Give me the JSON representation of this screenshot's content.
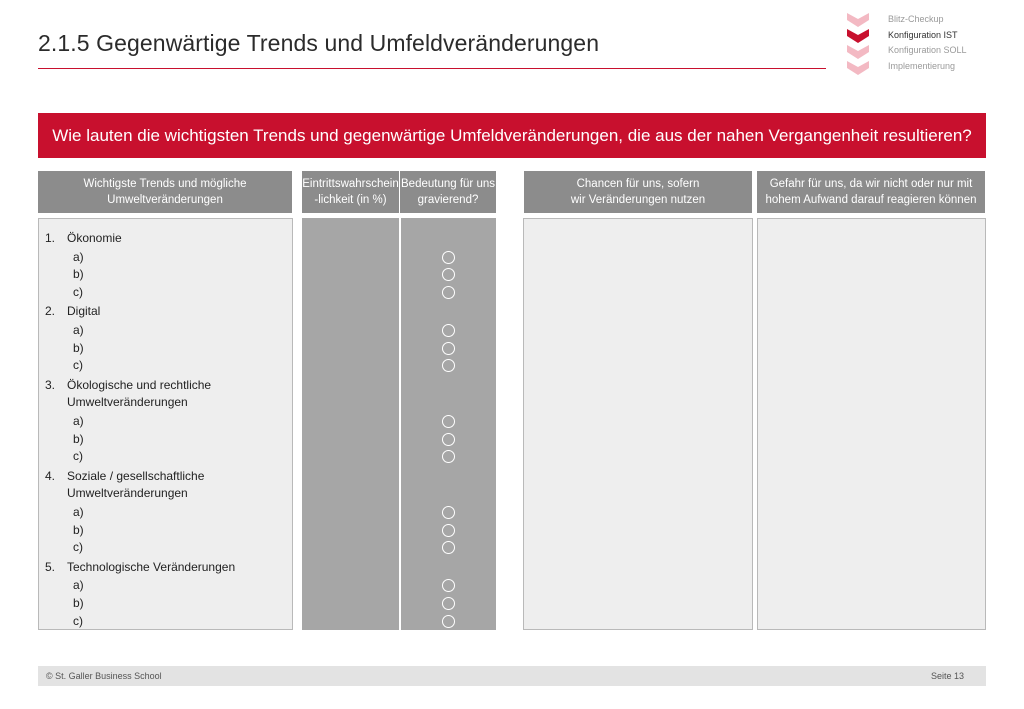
{
  "title": "2.1.5 Gegenwärtige Trends und Umfeldveränderungen",
  "steps": [
    {
      "label": "Blitz-Checkup",
      "active": false
    },
    {
      "label": "Konfiguration IST",
      "active": true
    },
    {
      "label": "Konfiguration SOLL",
      "active": false
    },
    {
      "label": "Implementierung",
      "active": false
    }
  ],
  "question": "Wie lauten die wichtigsten Trends und gegenwärtige Umfeldveränderungen, die aus der nahen Vergangenheit resultieren?",
  "columns": {
    "trends": [
      "Wichtigste Trends und mögliche",
      "Umweltveränderungen"
    ],
    "probability": [
      "Eintrittswahrschein",
      "-lichkeit (in %)"
    ],
    "significance": [
      "Bedeutung für uns",
      "gravierend?"
    ],
    "chances": [
      "Chancen für uns, sofern",
      "wir Veränderungen nutzen"
    ],
    "dangers": [
      "Gefahr für uns, da wir nicht oder nur mit",
      "hohem Aufwand darauf reagieren können"
    ]
  },
  "categories": [
    {
      "num": "1.",
      "lines": [
        "Ökonomie"
      ],
      "subs": [
        "a)",
        "b)",
        "c)"
      ]
    },
    {
      "num": "2.",
      "lines": [
        "Digital"
      ],
      "subs": [
        "a)",
        "b)",
        "c)"
      ]
    },
    {
      "num": "3.",
      "lines": [
        "Ökologische und rechtliche",
        "Umweltveränderungen"
      ],
      "subs": [
        "a)",
        "b)",
        "c)"
      ]
    },
    {
      "num": "4.",
      "lines": [
        "Soziale / gesellschaftliche",
        "Umweltveränderungen"
      ],
      "subs": [
        "a)",
        "b)",
        "c)"
      ]
    },
    {
      "num": "5.",
      "lines": [
        "Technologische Veränderungen"
      ],
      "subs": [
        "a)",
        "b)",
        "c)"
      ]
    }
  ],
  "footer": {
    "left": "© St. Galler Business School",
    "right": "Seite 13"
  },
  "colors": {
    "accent": "#c8102e",
    "header_gray": "#8c8c8c",
    "column_gray": "#a6a6a6",
    "panel_light": "#eeeeee"
  }
}
